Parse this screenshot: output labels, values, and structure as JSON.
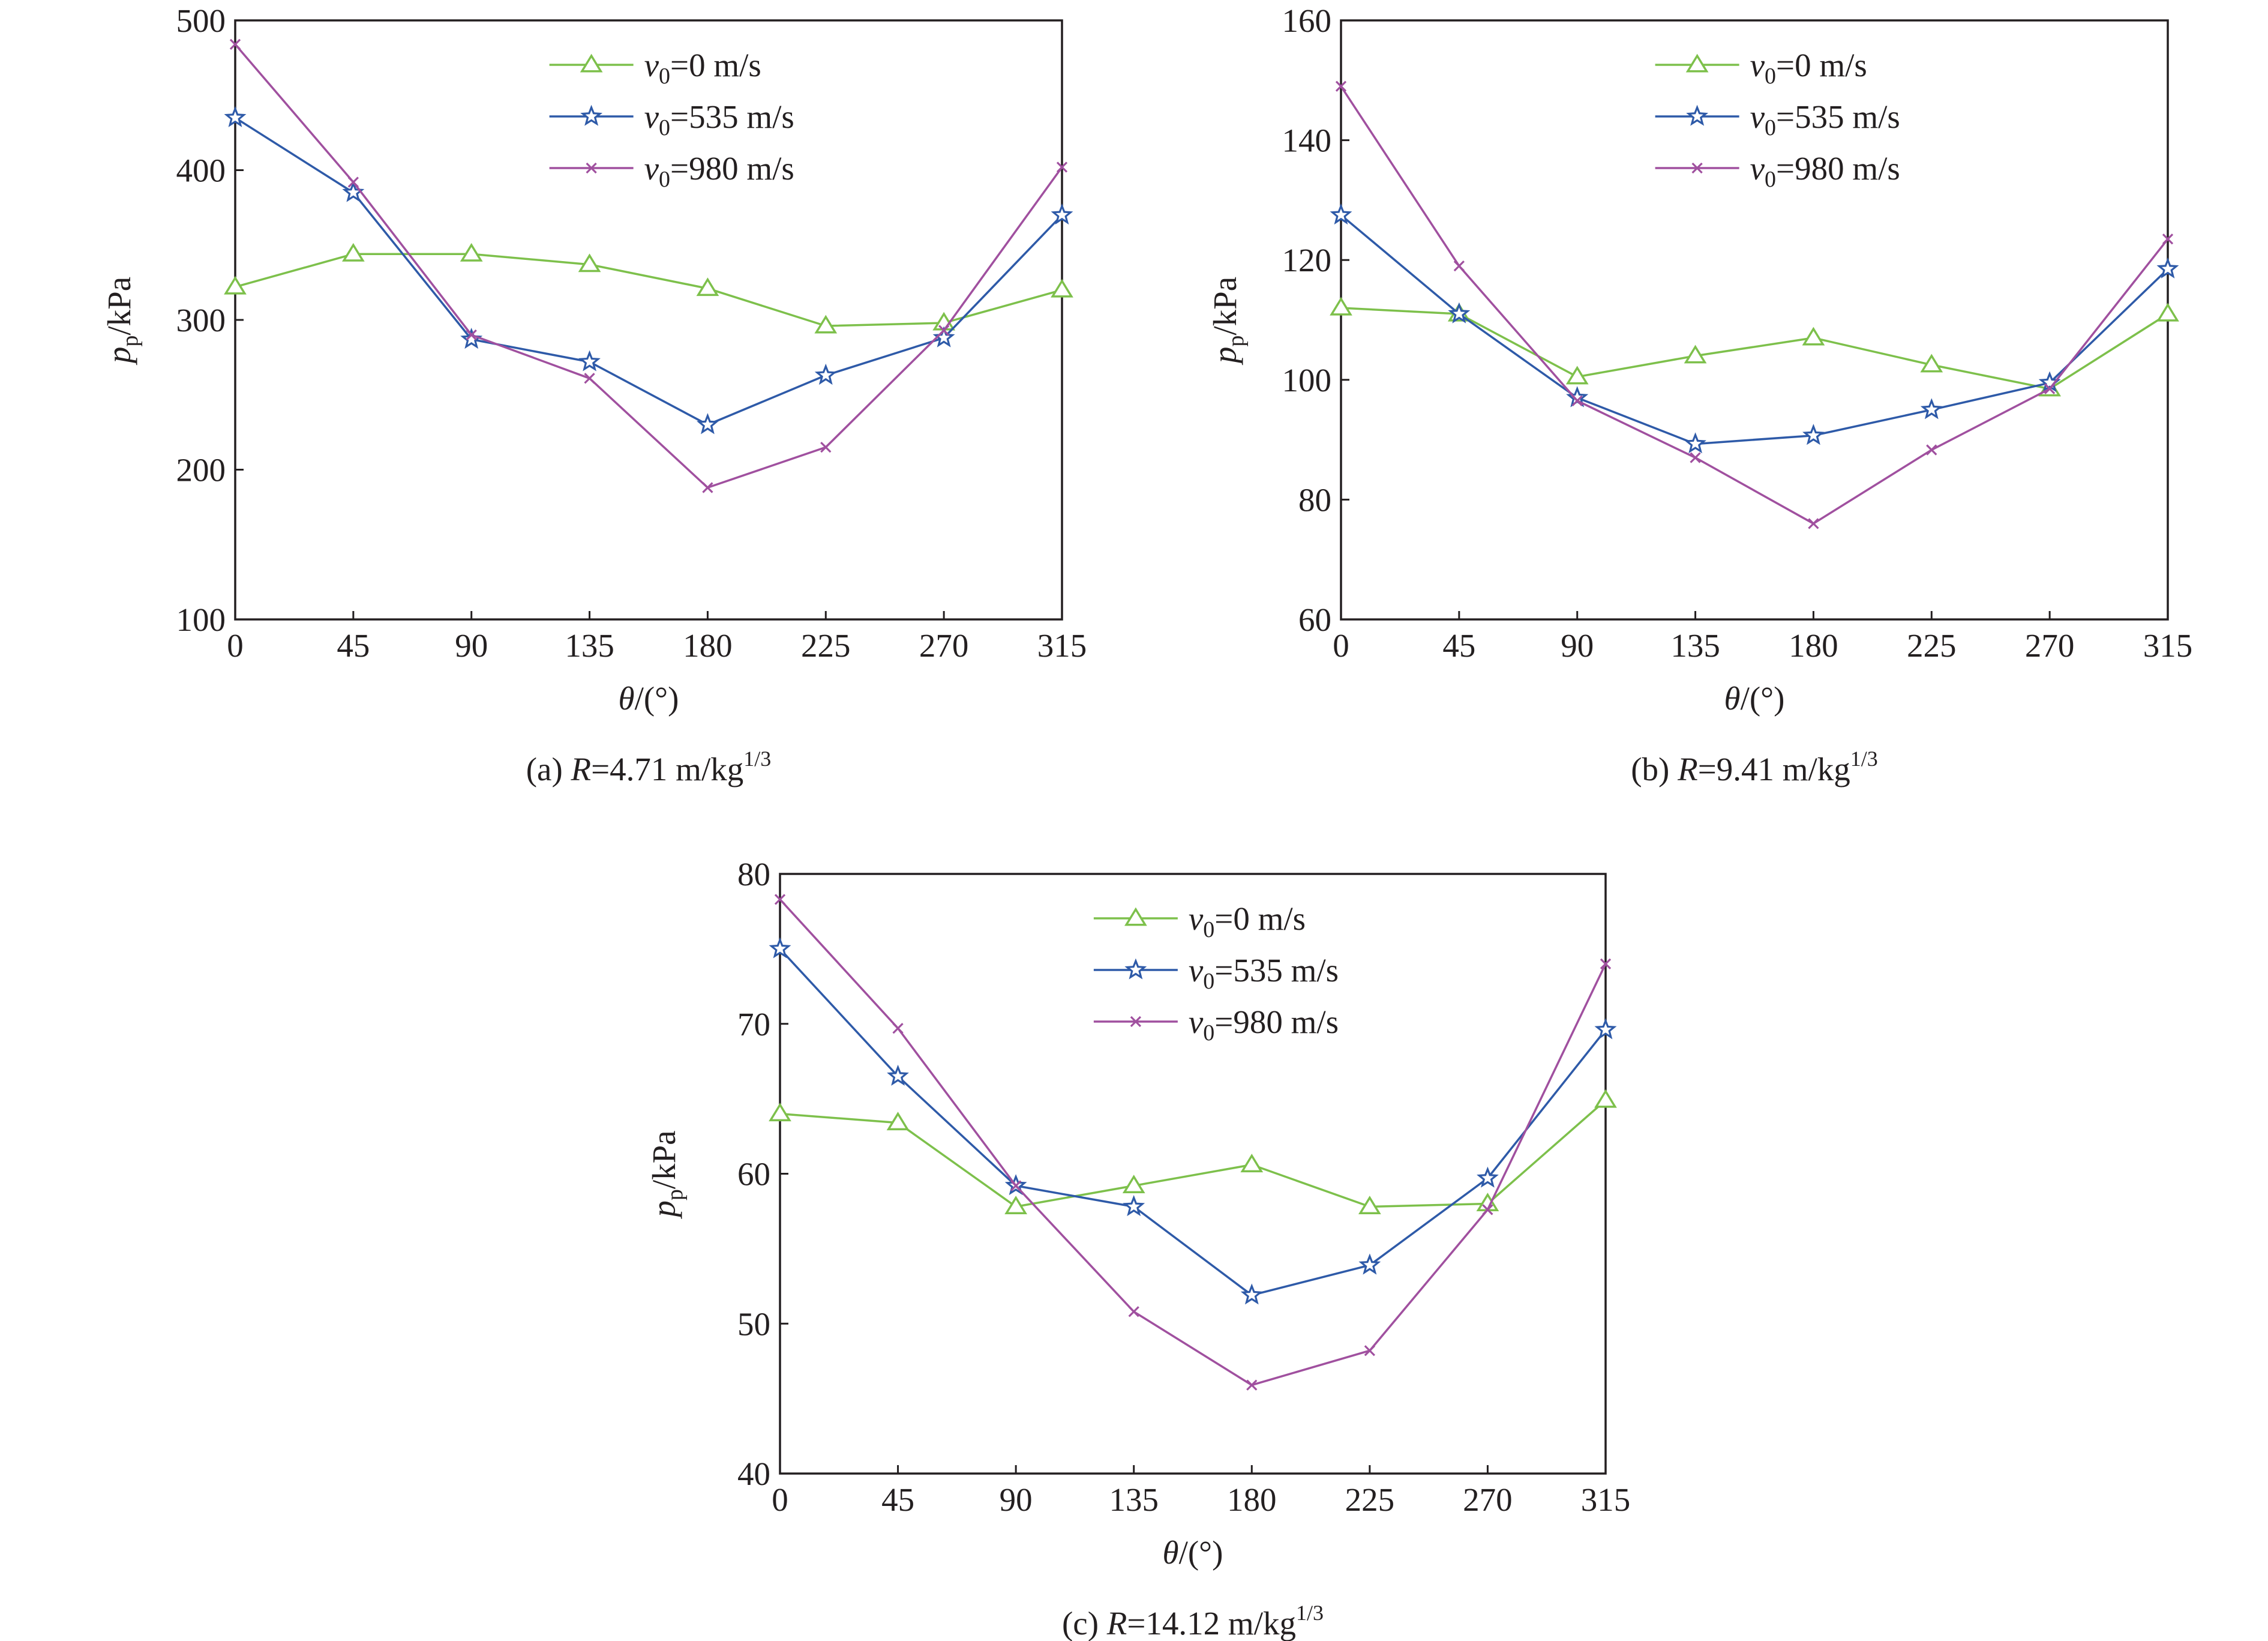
{
  "figure": {
    "series_colors": {
      "v0_0": "#7dc04b",
      "v0_535": "#2e5aa8",
      "v0_980": "#a0509f"
    },
    "legend": [
      {
        "key": "v0_0",
        "prefix": "v",
        "sub": "0",
        "suffix": "=0 m/s",
        "marker": "triangle"
      },
      {
        "key": "v0_535",
        "prefix": "v",
        "sub": "0",
        "suffix": "=535 m/s",
        "marker": "star"
      },
      {
        "key": "v0_980",
        "prefix": "v",
        "sub": "0",
        "suffix": "=980 m/s",
        "marker": "x"
      }
    ]
  },
  "chart_data": [
    {
      "type": "line",
      "caption": {
        "prefix": "(a) ",
        "var": "R",
        "value": "=4.71 m/kg",
        "sup": "1/3"
      },
      "xlabel": {
        "var": "θ",
        "unit": "/(°)"
      },
      "ylabel": {
        "var": "p",
        "sub": "p",
        "unit": "/kPa"
      },
      "x": [
        0,
        45,
        90,
        135,
        180,
        225,
        270,
        315
      ],
      "xlim": [
        0,
        315
      ],
      "ylim": [
        100,
        500
      ],
      "yticks": [
        100,
        200,
        300,
        400,
        500
      ],
      "legend_position": "top-right",
      "series": [
        {
          "key": "v0_0",
          "values": [
            322,
            344,
            344,
            337,
            321,
            296,
            298,
            320
          ]
        },
        {
          "key": "v0_535",
          "values": [
            435,
            385,
            287,
            272,
            230,
            263,
            288,
            370
          ]
        },
        {
          "key": "v0_980",
          "values": [
            484,
            392,
            290,
            261,
            188,
            215,
            293,
            402
          ]
        }
      ]
    },
    {
      "type": "line",
      "caption": {
        "prefix": "(b) ",
        "var": "R",
        "value": "=9.41 m/kg",
        "sup": "1/3"
      },
      "xlabel": {
        "var": "θ",
        "unit": "/(°)"
      },
      "ylabel": {
        "var": "p",
        "sub": "p",
        "unit": "/kPa"
      },
      "x": [
        0,
        45,
        90,
        135,
        180,
        225,
        270,
        315
      ],
      "xlim": [
        0,
        315
      ],
      "ylim": [
        60,
        160
      ],
      "yticks": [
        60,
        80,
        100,
        120,
        140,
        160
      ],
      "legend_position": "top-right",
      "series": [
        {
          "key": "v0_0",
          "values": [
            112,
            111,
            100.5,
            104,
            107,
            102.5,
            98.5,
            111
          ]
        },
        {
          "key": "v0_535",
          "values": [
            127.5,
            111,
            97,
            89.3,
            90.7,
            95,
            99.5,
            118.5
          ]
        },
        {
          "key": "v0_980",
          "values": [
            149,
            119,
            96.5,
            87,
            76,
            88.3,
            98.5,
            123.5
          ]
        }
      ]
    },
    {
      "type": "line",
      "caption": {
        "prefix": "(c) ",
        "var": "R",
        "value": "=14.12 m/kg",
        "sup": "1/3"
      },
      "xlabel": {
        "var": "θ",
        "unit": "/(°)"
      },
      "ylabel": {
        "var": "p",
        "sub": "p",
        "unit": "/kPa"
      },
      "x": [
        0,
        45,
        90,
        135,
        180,
        225,
        270,
        315
      ],
      "xlim": [
        0,
        315
      ],
      "ylim": [
        40,
        80
      ],
      "yticks": [
        40,
        50,
        60,
        70,
        80
      ],
      "legend_position": "top-right",
      "series": [
        {
          "key": "v0_0",
          "values": [
            64,
            63.4,
            57.8,
            59.2,
            60.6,
            57.8,
            58,
            64.9
          ]
        },
        {
          "key": "v0_535",
          "values": [
            75,
            66.5,
            59.2,
            57.8,
            51.9,
            53.9,
            59.7,
            69.6
          ]
        },
        {
          "key": "v0_980",
          "values": [
            78.3,
            69.7,
            59.2,
            50.8,
            45.9,
            48.2,
            57.6,
            74
          ]
        }
      ]
    }
  ]
}
